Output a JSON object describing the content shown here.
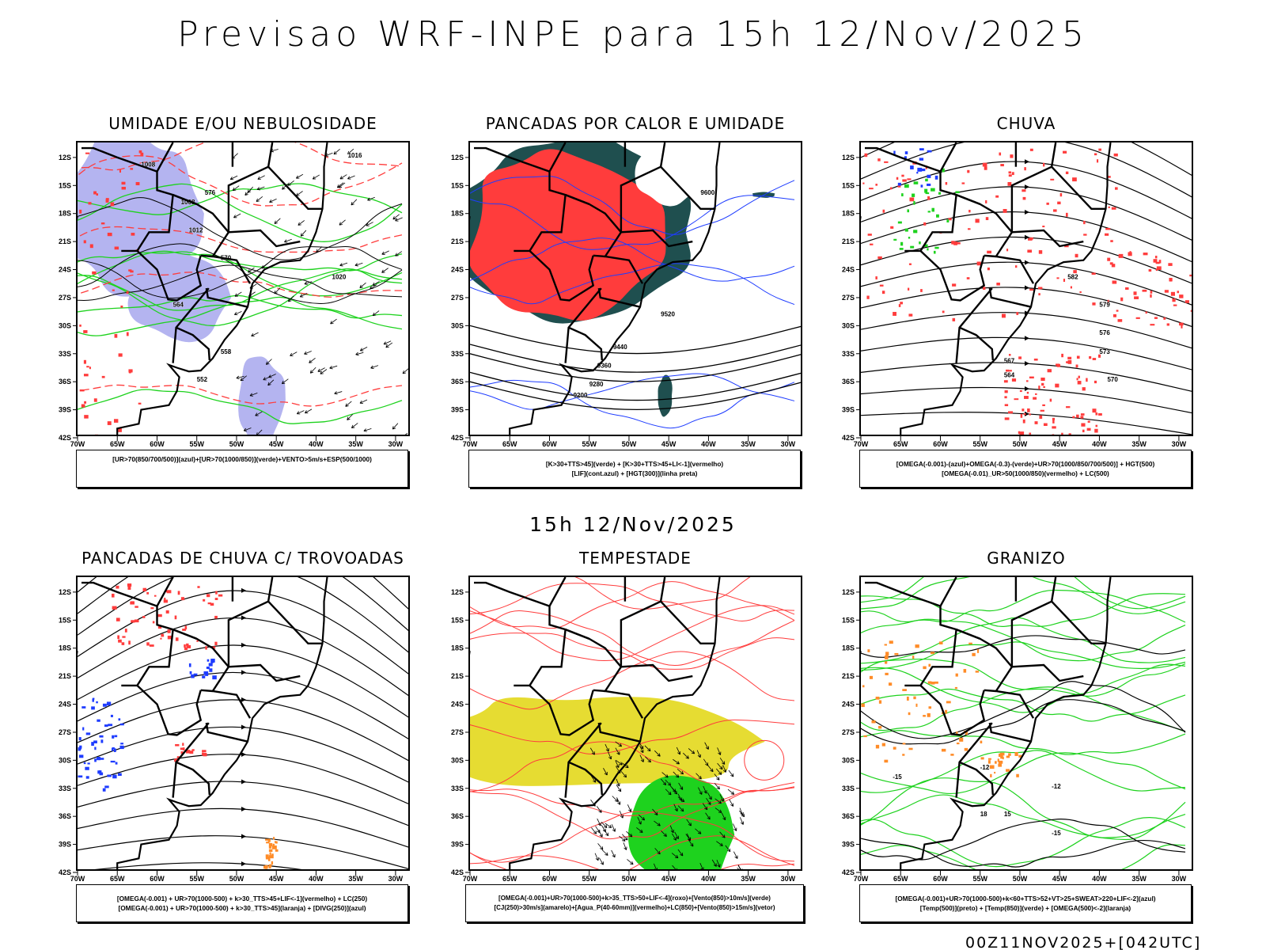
{
  "header": {
    "title": "Previsao WRF-INPE  para 15h 12/Nov/2025",
    "subtitle": "15h 12/Nov/2025",
    "footer": "00Z11NOV2025+[042UTC]"
  },
  "axes": {
    "lat_ticks": [
      "12S",
      "15S",
      "18S",
      "21S",
      "24S",
      "27S",
      "30S",
      "33S",
      "36S",
      "39S",
      "42S"
    ],
    "lon_ticks": [
      "70W",
      "65W",
      "60W",
      "55W",
      "50W",
      "45W",
      "40W",
      "35W",
      "30W"
    ]
  },
  "colors": {
    "lavender": "#b4b4f0",
    "red": "#ff3c3c",
    "teal": "#1f4f4f",
    "blue": "#1e3cff",
    "green": "#1ed21e",
    "yellow": "#e6dc32",
    "orange": "#ff8c28"
  },
  "panels": [
    {
      "id": "umidade",
      "title": "UMIDADE E/OU NEBULOSIDADE",
      "legend": [
        "[UR>70(850/700/500)](azul)+[UR>70(1000/850)](verde)+VENTO>5m/s+ESP(500/1000)"
      ],
      "labels": [
        "1008",
        "1008",
        "1012",
        "1016",
        "1020",
        "576",
        "570",
        "564",
        "558",
        "552"
      ]
    },
    {
      "id": "pancadas-calor",
      "title": "PANCADAS POR CALOR E UMIDADE",
      "legend": [
        "[K>30+TTS>45](verde) + [K>30+TTS>45+LI<-1](vermelho)",
        "[LIF](cont.azul) + [HGT(300)](linha preta)"
      ],
      "labels": [
        "9600",
        "9520",
        "9440",
        "9360",
        "9280",
        "9200"
      ]
    },
    {
      "id": "chuva",
      "title": "CHUVA",
      "legend": [
        "[OMEGA(-0.001)-(azul)+OMEGA(-0.3)-(verde)+UR>70(1000/850/700/500)] + HGT(500)",
        "[OMEGA(-0.01)_UR>50(1000/850)(vermelho) + LC(500)"
      ],
      "labels": [
        "582",
        "579",
        "576",
        "573",
        "570",
        "567",
        "564"
      ]
    },
    {
      "id": "pancadas-trovoadas",
      "title": "PANCADAS DE CHUVA C/ TROVOADAS",
      "legend": [
        "[OMEGA(-0.001) + UR>70(1000-500) + k>30_TTS>45+LIF<-1](vermelho) + LC(250)",
        "[OMEGA(-0.001) + UR>70(1000-500) + k>30_TTS>45](laranja) + [DIVG(250)](azul)"
      ],
      "labels": []
    },
    {
      "id": "tempestade",
      "title": "TEMPESTADE",
      "legend": [
        "[OMEGA(-0.001)+UR>70(1000-500)+k>35_TTS>50+LIF<-4](roxo)+[Vento(850)>10m/s](verde)",
        "[CJ(250)>30m/s](amarelo)+[Agua_P(40-60mm)](vermelho)+LC(850)+[Vento(850)>15m/s](vetor)"
      ],
      "labels": []
    },
    {
      "id": "granizo",
      "title": "GRANIZO",
      "legend": [
        "[OMEGA(-0.001)+UR>70(1000-500)+k<60+TTS>52+VT>25+SWEAT>220+LIF<-2](azul)",
        "[Temp(500)](preto) + [Temp(850)](verde) + [OMEGA(500)<-2](laranja)"
      ],
      "labels": [
        "-12",
        "-12",
        "-15",
        "-15",
        "15",
        "18"
      ]
    }
  ]
}
